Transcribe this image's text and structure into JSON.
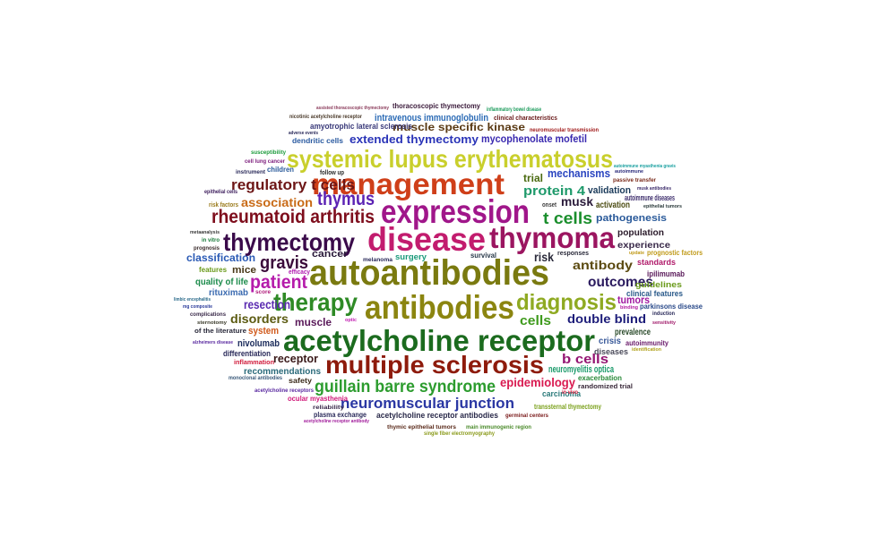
{
  "words": [
    {
      "text": "autoantibodies",
      "color": "#7a7a10"
    },
    {
      "text": "acetylcholine receptor",
      "color": "#1b6b1e"
    },
    {
      "text": "expression",
      "color": "#a0168a"
    },
    {
      "text": "disease",
      "color": "#c21c6e"
    },
    {
      "text": "antibodies",
      "color": "#8b8510"
    },
    {
      "text": "management",
      "color": "#cf3f19"
    },
    {
      "text": "thymoma",
      "color": "#9b1560"
    },
    {
      "text": "multiple sclerosis",
      "color": "#8e1b0c"
    },
    {
      "text": "systemic lupus erythematosus",
      "color": "#c9cf2c"
    },
    {
      "text": "thymectomy",
      "color": "#3a0a4a"
    },
    {
      "text": "therapy",
      "color": "#2e8a25"
    },
    {
      "text": "diagnosis",
      "color": "#8faa22"
    },
    {
      "text": "rheumatoid arthritis",
      "color": "#7e0d1c"
    },
    {
      "text": "guillain barre syndrome",
      "color": "#2c9c2e"
    },
    {
      "text": "neuromuscular junction",
      "color": "#2a37a3"
    },
    {
      "text": "regulatory t cells",
      "color": "#6d1616"
    },
    {
      "text": "thymus",
      "color": "#5b22b4"
    },
    {
      "text": "patient",
      "color": "#b51cab"
    },
    {
      "text": "gravis",
      "color": "#3a0a3a"
    },
    {
      "text": "t cells",
      "color": "#1a8e2c"
    },
    {
      "text": "protein 4",
      "color": "#1f9a6b"
    },
    {
      "text": "extended thymectomy",
      "color": "#2b35b8"
    },
    {
      "text": "association",
      "color": "#c96b17"
    },
    {
      "text": "epidemiology",
      "color": "#d91a50"
    },
    {
      "text": "b cells",
      "color": "#941573"
    },
    {
      "text": "outcomes",
      "color": "#2a1a5e"
    },
    {
      "text": "antibody",
      "color": "#5b4a10"
    },
    {
      "text": "double blind",
      "color": "#1d1d7a"
    },
    {
      "text": "cells",
      "color": "#3e9a1c"
    },
    {
      "text": "resection",
      "color": "#5a2ab0"
    },
    {
      "text": "disorders",
      "color": "#5b5a10"
    },
    {
      "text": "muscle specific kinase",
      "color": "#5a3a14"
    },
    {
      "text": "mechanisms",
      "color": "#2a45c0"
    },
    {
      "text": "classification",
      "color": "#2a5ab5"
    },
    {
      "text": "musk",
      "color": "#2a1a3a"
    },
    {
      "text": "muscle",
      "color": "#5a1a5a"
    },
    {
      "text": "receptor",
      "color": "#3a1a1a"
    },
    {
      "text": "nivolumab",
      "color": "#1a2a5a"
    },
    {
      "text": "mycophenolate mofetil",
      "color": "#3a2ab0"
    },
    {
      "text": "intravenous immunoglobulin",
      "color": "#2a6ab5"
    },
    {
      "text": "neuromyelitis optica",
      "color": "#1a9a6a"
    },
    {
      "text": "trial",
      "color": "#4a6a10"
    },
    {
      "text": "validation",
      "color": "#1a3a5a"
    },
    {
      "text": "pathogenesis",
      "color": "#2a5a9a"
    },
    {
      "text": "activation",
      "color": "#4a4a10"
    },
    {
      "text": "population",
      "color": "#2a1a2a"
    },
    {
      "text": "experience",
      "color": "#3a2a4a"
    },
    {
      "text": "risk",
      "color": "#2a2a3a"
    },
    {
      "text": "mice",
      "color": "#4a3a1a"
    },
    {
      "text": "cancer",
      "color": "#2a1a3a"
    },
    {
      "text": "quality of life",
      "color": "#1a8a4a"
    },
    {
      "text": "rituximab",
      "color": "#3a6ab0"
    },
    {
      "text": "tumors",
      "color": "#a01aa0"
    },
    {
      "text": "prevalence",
      "color": "#2a4a2a"
    },
    {
      "text": "crisis",
      "color": "#3a5a9a"
    },
    {
      "text": "system",
      "color": "#d0581a"
    },
    {
      "text": "recommendations",
      "color": "#2a6a7a"
    },
    {
      "text": "differentiation",
      "color": "#2a2a5a"
    },
    {
      "text": "autoimmune diseases",
      "color": "#3a2a6a"
    },
    {
      "text": "standards",
      "color": "#b01a6a"
    },
    {
      "text": "ipilimumab",
      "color": "#5a1a5a"
    },
    {
      "text": "guidelines",
      "color": "#6a9a1a"
    },
    {
      "text": "clinical features",
      "color": "#2a5a8a"
    },
    {
      "text": "parkinsons disease",
      "color": "#2a4a8a"
    },
    {
      "text": "prognostic factors",
      "color": "#c09a1a"
    },
    {
      "text": "autoimmunity",
      "color": "#6a1a6a"
    },
    {
      "text": "diseases",
      "color": "#4a4a5a"
    },
    {
      "text": "exacerbation",
      "color": "#2a8a3a"
    },
    {
      "text": "randomized trial",
      "color": "#3a2a3a"
    },
    {
      "text": "carcinoma",
      "color": "#2a7a7a"
    },
    {
      "text": "transsternal thymectomy",
      "color": "#7aa01a"
    },
    {
      "text": "amyotrophic lateral sclerosis",
      "color": "#3a3a7a"
    },
    {
      "text": "dendritic cells",
      "color": "#2a5aa0"
    },
    {
      "text": "thoracoscopic thymectomy",
      "color": "#3a1a3a"
    },
    {
      "text": "nicotinic acetylcholine receptor",
      "color": "#4a3a2a"
    },
    {
      "text": "clinical characteristics",
      "color": "#6a1a1a"
    },
    {
      "text": "neuromuscular transmission",
      "color": "#a01a1a"
    },
    {
      "text": "inflammatory bowel disease",
      "color": "#1a9a5a"
    },
    {
      "text": "assisted thoracoscopic thymectomy",
      "color": "#8a3a5a"
    },
    {
      "text": "susceptibility",
      "color": "#1a9a3a"
    },
    {
      "text": "cell lung cancer",
      "color": "#7a1a7a"
    },
    {
      "text": "adverse events",
      "color": "#2a2a5a"
    },
    {
      "text": "children",
      "color": "#2a5a9a"
    },
    {
      "text": "follow up",
      "color": "#2a2a2a"
    },
    {
      "text": "instrument",
      "color": "#2a2a5a"
    },
    {
      "text": "epithelial cells",
      "color": "#3a1a5a"
    },
    {
      "text": "risk factors",
      "color": "#9a7a1a"
    },
    {
      "text": "metaanalysis",
      "color": "#3a3a3a"
    },
    {
      "text": "in vitro",
      "color": "#1a7a3a"
    },
    {
      "text": "prognosis",
      "color": "#3a2a2a"
    },
    {
      "text": "features",
      "color": "#6a9a1a"
    },
    {
      "text": "efficacy",
      "color": "#b01ab0"
    },
    {
      "text": "score",
      "color": "#b01a7a"
    },
    {
      "text": "limbic encephalitis",
      "color": "#2a6a8a"
    },
    {
      "text": "mg composite",
      "color": "#2a3a9a"
    },
    {
      "text": "complications",
      "color": "#3a2a4a"
    },
    {
      "text": "sternotomy",
      "color": "#3a3a2a"
    },
    {
      "text": "of the literature",
      "color": "#2a2a3a"
    },
    {
      "text": "alzheimers disease",
      "color": "#5a2aa0"
    },
    {
      "text": "inflammation",
      "color": "#d01a3a"
    },
    {
      "text": "monoclonal antibodies",
      "color": "#3a5a7a"
    },
    {
      "text": "safety",
      "color": "#3a2a1a"
    },
    {
      "text": "acetylcholine receptors",
      "color": "#5a2aa0"
    },
    {
      "text": "ocular myasthenia",
      "color": "#d01a7a"
    },
    {
      "text": "reliability",
      "color": "#3a2a4a"
    },
    {
      "text": "plasma exchange",
      "color": "#2a2a5a"
    },
    {
      "text": "acetylcholine receptor antibody",
      "color": "#a01a9a"
    },
    {
      "text": "acetylcholine receptor antibodies",
      "color": "#2a2a4a"
    },
    {
      "text": "germinal centers",
      "color": "#7a1a1a"
    },
    {
      "text": "thymic epithelial tumors",
      "color": "#5a2a1a"
    },
    {
      "text": "main immunogenic region",
      "color": "#4a8a2a"
    },
    {
      "text": "single fiber electromyography",
      "color": "#8a9a1a"
    },
    {
      "text": "surgery",
      "color": "#1a9a7a"
    },
    {
      "text": "melanoma",
      "color": "#2a2a5a"
    },
    {
      "text": "survival",
      "color": "#2a3a4a"
    },
    {
      "text": "responses",
      "color": "#2a2a3a"
    },
    {
      "text": "onset",
      "color": "#3a3a3a"
    },
    {
      "text": "update",
      "color": "#c09a1a"
    },
    {
      "text": "optic",
      "color": "#c01ab0"
    },
    {
      "text": "in vivo",
      "color": "#d01a3a"
    },
    {
      "text": "binding",
      "color": "#b01aa0"
    },
    {
      "text": "induction",
      "color": "#2a2a5a"
    },
    {
      "text": "sensitivity",
      "color": "#a01a6a"
    },
    {
      "text": "identification",
      "color": "#b0a01a"
    },
    {
      "text": "autoimmune myasthenia gravis",
      "color": "#1aa0a0"
    },
    {
      "text": "autoimmune",
      "color": "#2a2a7a"
    },
    {
      "text": "passive transfer",
      "color": "#7a2a1a"
    },
    {
      "text": "musk antibodies",
      "color": "#3a2a6a"
    },
    {
      "text": "epithelial tumors",
      "color": "#2a3a3a"
    }
  ]
}
